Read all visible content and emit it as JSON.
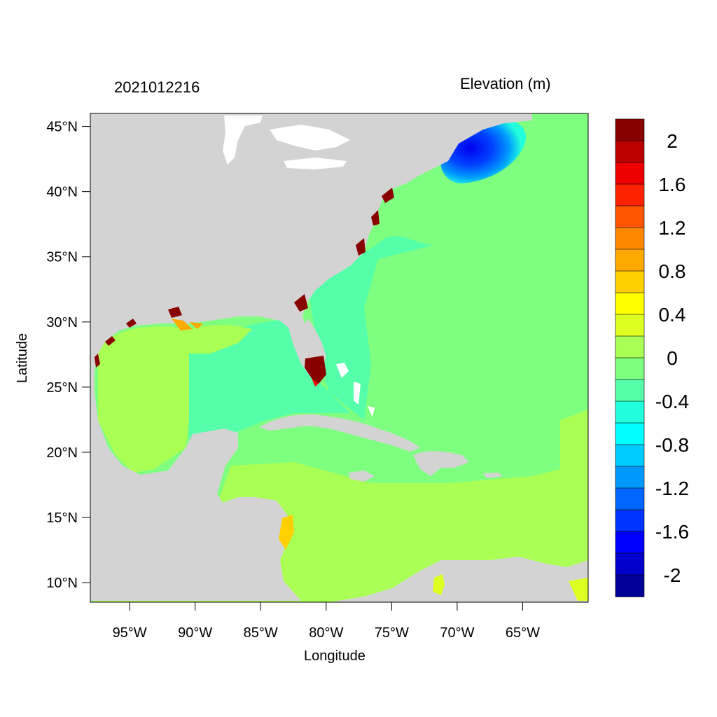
{
  "plot": {
    "left_title": "2021012216",
    "right_title": "Elevation (m)",
    "xlabel": "Longitude",
    "ylabel": "Latitude",
    "x_ticks": [
      "95°W",
      "90°W",
      "85°W",
      "80°W",
      "75°W",
      "70°W",
      "65°W"
    ],
    "x_tick_values": [
      -95,
      -90,
      -85,
      -80,
      -75,
      -70,
      -65
    ],
    "y_ticks": [
      "45°N",
      "40°N",
      "35°N",
      "30°N",
      "25°N",
      "20°N",
      "15°N",
      "10°N"
    ],
    "y_tick_values": [
      45,
      40,
      35,
      30,
      25,
      20,
      15,
      10
    ],
    "xlim": [
      -98.0,
      -60.0
    ],
    "ylim": [
      8.5,
      46.0
    ]
  },
  "colors": {
    "land": "#d3d3d3",
    "ocean_zero": "#7fff7f",
    "ocean_pos": "#aaff55",
    "ocean_neg": "#55ffaa"
  },
  "colorbar": {
    "labels": [
      "2",
      "1.6",
      "1.2",
      "0.8",
      "0.4",
      "0",
      "-0.4",
      "-0.8",
      "-1.2",
      "-1.6",
      "-2"
    ],
    "colors": [
      "#880000",
      "#bb0000",
      "#ee0000",
      "#ff2200",
      "#ff5500",
      "#ff8800",
      "#ffaa00",
      "#ffd000",
      "#ffff00",
      "#ddff22",
      "#aaff55",
      "#7fff7f",
      "#55ffaa",
      "#22ffdd",
      "#00ffff",
      "#00ccff",
      "#0099ff",
      "#0066ff",
      "#0033ff",
      "#0000ff",
      "#0000cc",
      "#000099"
    ]
  }
}
